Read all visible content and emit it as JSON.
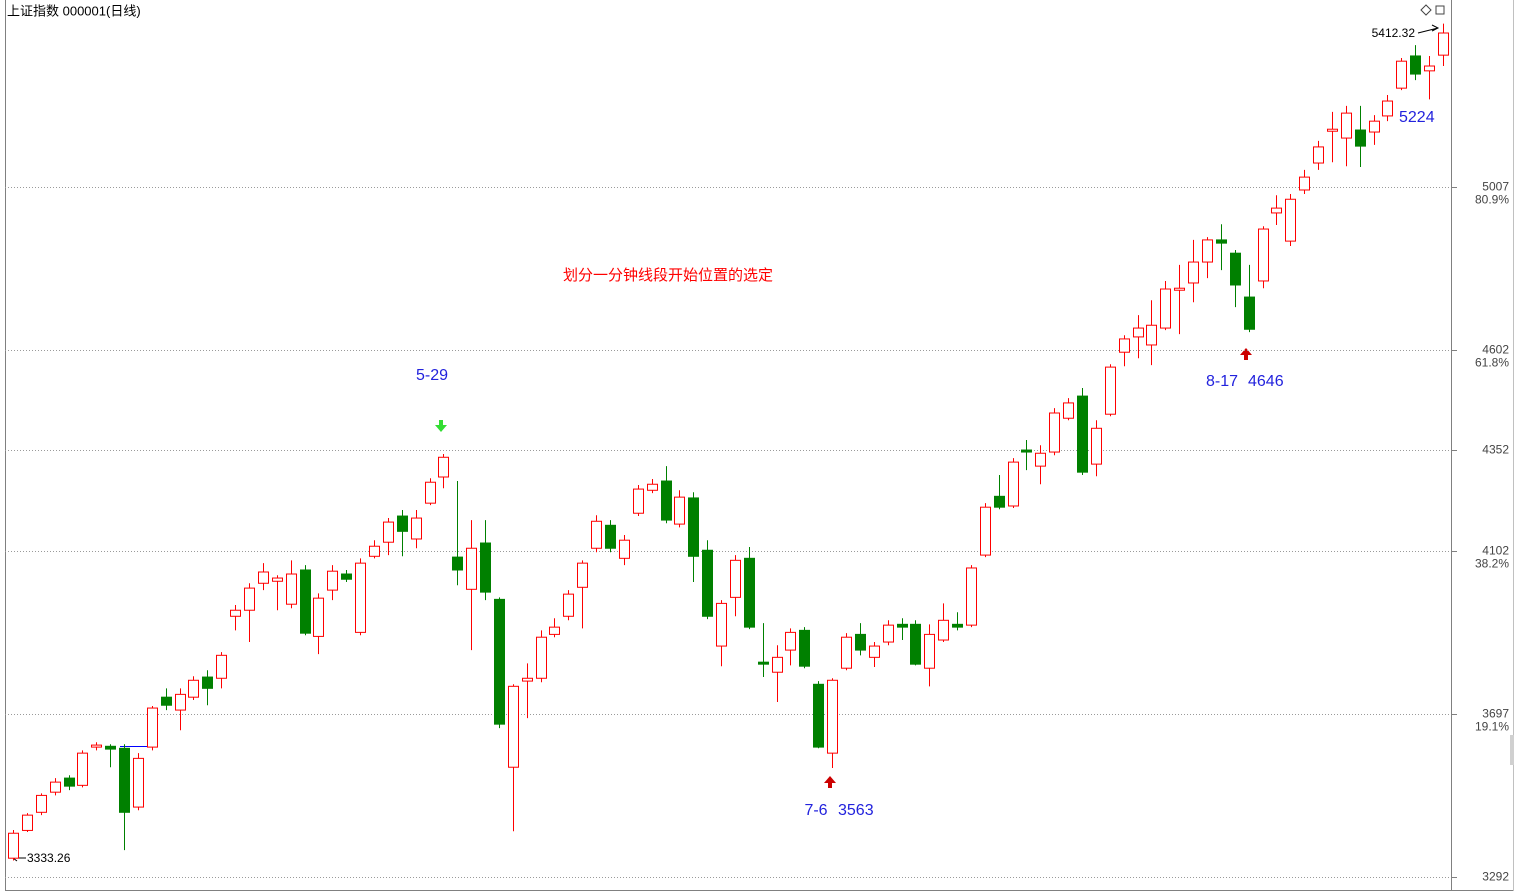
{
  "chart_data": {
    "type": "candlestick",
    "title": "上证指数 000001(日线)",
    "annotation": "划分一分钟线段开始位置的选定",
    "marker_labels": [
      "5-29",
      "7-6",
      "8-17"
    ],
    "up_color": "#ff0000",
    "down_color": "#008000",
    "grid": true,
    "ylim": [
      3260,
      5471
    ],
    "yticks": [
      5007,
      4602,
      4352,
      4102,
      3697,
      3292
    ],
    "fib_labels": [
      "80.9%",
      "61.8%",
      null,
      "38.2%",
      "19.1%",
      null
    ],
    "open": [
      3339,
      3408,
      3453,
      3503,
      3538,
      3520,
      3615,
      3617,
      3612,
      3466,
      3615,
      3739,
      3707,
      3739,
      3789,
      3786,
      3940,
      3955,
      4022,
      4027,
      3970,
      4055,
      3890,
      4005,
      4045,
      3900,
      4089,
      4124,
      4189,
      4132,
      4221,
      4286,
      4087,
      4007,
      4122,
      3982,
      3565,
      3779,
      3786,
      3895,
      3940,
      4012,
      4109,
      4166,
      4084,
      4196,
      4253,
      4276,
      4169,
      4234,
      4104,
      3866,
      3987,
      4084,
      3826,
      3801,
      3856,
      3905,
      3771,
      3600,
      3811,
      3895,
      3838,
      3876,
      3920,
      3920,
      3811,
      3881,
      3920,
      3918,
      4092,
      4238,
      4214,
      4353,
      4313,
      4348,
      4432,
      4487,
      4318,
      4442,
      4596,
      4634,
      4614,
      4656,
      4750,
      4768,
      4820,
      4875,
      4842,
      4733,
      4773,
      4942,
      4872,
      4999,
      5066,
      5145,
      5128,
      5148,
      5143,
      5183,
      5252,
      5332,
      5295,
      5334
    ],
    "high": [
      3409,
      3451,
      3500,
      3538,
      3545,
      3607,
      3627,
      3622,
      3622,
      3600,
      3717,
      3761,
      3761,
      3791,
      3806,
      3851,
      3968,
      4022,
      4072,
      4042,
      4079,
      4067,
      3997,
      4067,
      4055,
      4084,
      4129,
      4184,
      4204,
      4204,
      4283,
      4343,
      4276,
      4179,
      4179,
      3987,
      3771,
      3823,
      3905,
      3935,
      4005,
      4079,
      4191,
      4179,
      4142,
      4266,
      4281,
      4313,
      4253,
      4248,
      4129,
      3980,
      4092,
      4112,
      3923,
      3868,
      3910,
      3913,
      3779,
      3786,
      3898,
      3923,
      3876,
      3930,
      3935,
      3930,
      3920,
      3972,
      3950,
      4067,
      4221,
      4291,
      4333,
      4378,
      4365,
      4457,
      4482,
      4507,
      4427,
      4566,
      4638,
      4688,
      4725,
      4773,
      4813,
      4875,
      4882,
      4914,
      4850,
      4813,
      4909,
      4986,
      4989,
      5049,
      5121,
      5193,
      5208,
      5208,
      5185,
      5235,
      5327,
      5359,
      5332,
      5412.32
    ],
    "low": [
      3333.26,
      3404,
      3446,
      3495,
      3508,
      3515,
      3607,
      3565,
      3359,
      3458,
      3607,
      3707,
      3657,
      3732,
      3719,
      3761,
      3905,
      3876,
      4005,
      3955,
      3960,
      3893,
      3846,
      3980,
      4025,
      3893,
      4084,
      4092,
      4089,
      4109,
      4216,
      4258,
      4017,
      3856,
      3980,
      3662,
      3406,
      3687,
      3776,
      3888,
      3930,
      3910,
      4099,
      4099,
      4067,
      4189,
      4246,
      4171,
      4161,
      4025,
      3933,
      3816,
      3940,
      3908,
      3789,
      3727,
      3818,
      3811,
      3612,
      3563,
      3806,
      3843,
      3814,
      3868,
      3881,
      3818,
      3766,
      3876,
      3905,
      3913,
      4087,
      4206,
      4209,
      4303,
      4268,
      4340,
      4427,
      4291,
      4288,
      4437,
      4561,
      4581,
      4564,
      4651,
      4641,
      4720,
      4780,
      4800,
      4708,
      4646,
      4755,
      4912,
      4860,
      4989,
      5049,
      5068,
      5058,
      5056,
      5111,
      5170,
      5247,
      5272,
      5224,
      5307
    ],
    "close": [
      3401,
      3446,
      3495,
      3528,
      3518,
      3600,
      3620,
      3610,
      3453,
      3587,
      3712,
      3719,
      3746,
      3781,
      3761,
      3843,
      3955,
      4010,
      4050,
      4035,
      4045,
      3898,
      3985,
      4052,
      4032,
      4072,
      4114,
      4174,
      4151,
      4184,
      4273,
      4335,
      4055,
      4109,
      4000,
      3672,
      3766,
      3786,
      3888,
      3913,
      3995,
      4072,
      4176,
      4109,
      4129,
      4256,
      4268,
      4179,
      4236,
      4089,
      3940,
      3972,
      4079,
      3913,
      3821,
      3838,
      3900,
      3816,
      3615,
      3781,
      3888,
      3856,
      3866,
      3918,
      3913,
      3821,
      3895,
      3930,
      3913,
      4060,
      4211,
      4211,
      4323,
      4348,
      4345,
      4445,
      4470,
      4298,
      4407,
      4559,
      4629,
      4656,
      4663,
      4753,
      4755,
      4820,
      4875,
      4867,
      4763,
      4653,
      4902,
      4954,
      4976,
      5031,
      5106,
      5150,
      5190,
      5108,
      5170,
      5220,
      5319,
      5287,
      5307,
      5389
    ]
  }
}
